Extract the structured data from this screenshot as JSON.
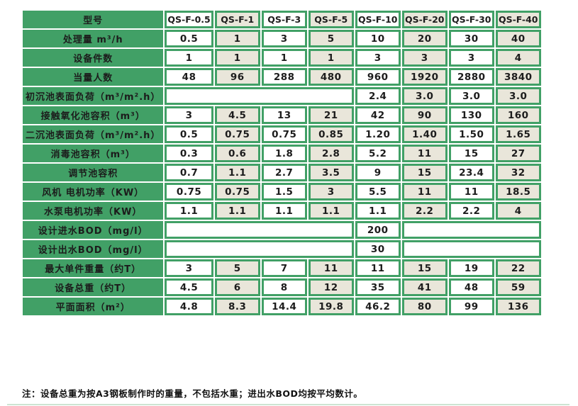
{
  "table": {
    "header": {
      "label": "型号",
      "models": [
        "QS-F-0.5",
        "QS-F-1",
        "QS-F-3",
        "QS-F-5",
        "QS-F-10",
        "QS-F-20",
        "QS-F-30",
        "QS-F-40"
      ]
    },
    "rows": [
      {
        "label": "处理量 m³/h",
        "cells": [
          "0.5",
          "1",
          "3",
          "5",
          "10",
          "20",
          "30",
          "40"
        ]
      },
      {
        "label": "设备件数",
        "cells": [
          "1",
          "1",
          "1",
          "1",
          "3",
          "3",
          "3",
          "4"
        ]
      },
      {
        "label": "当量人数",
        "cells": [
          "48",
          "96",
          "288",
          "480",
          "960",
          "1920",
          "2880",
          "3840"
        ]
      },
      {
        "label": "初沉池表面负荷（m³/m².h）",
        "cells": [
          {
            "text": "",
            "span": 4
          },
          "2.4",
          "3.0",
          "3.0",
          "3.0"
        ]
      },
      {
        "label": "接触氧化池容积（m³）",
        "cells": [
          "3",
          "4.5",
          "13",
          "21",
          "42",
          "90",
          "130",
          "160"
        ]
      },
      {
        "label": "二沉池表面负荷（m³/m².h）",
        "cells": [
          "0.5",
          "0.75",
          "0.75",
          "0.85",
          "1.20",
          "1.40",
          "1.50",
          "1.65"
        ]
      },
      {
        "label": "消毒池容积（m³）",
        "cells": [
          "0.3",
          "0.6",
          "1.8",
          "2.8",
          "5.2",
          "11",
          "15",
          "27"
        ]
      },
      {
        "label": "调节池容积",
        "cells": [
          "0.7",
          "1.1",
          "2.7",
          "3.5",
          "9",
          "15",
          "23.4",
          "32"
        ]
      },
      {
        "label": "风机 电机功率（KW）",
        "cells": [
          "0.75",
          "0.75",
          "1.5",
          "3",
          "5.5",
          "11",
          "11",
          "18.5"
        ]
      },
      {
        "label": "水泵电机功率（KW）",
        "cells": [
          "1.1",
          "1.1",
          "1.1",
          "1.1",
          "1.1",
          "2.2",
          "2.2",
          "4"
        ]
      },
      {
        "label": "设计进水BOD（mg/l）",
        "cells": [
          {
            "text": "",
            "span": 4
          },
          "200",
          {
            "text": "",
            "span": 3
          }
        ]
      },
      {
        "label": "设计出水BOD（mg/l）",
        "cells": [
          {
            "text": "",
            "span": 4
          },
          "30",
          {
            "text": "",
            "span": 3
          }
        ]
      },
      {
        "label": "最大单件重量（约T）",
        "cells": [
          "3",
          "5",
          "7",
          "11",
          "11",
          "15",
          "19",
          "22"
        ]
      },
      {
        "label": "设备总重（约T）",
        "cells": [
          "4.5",
          "6",
          "8",
          "12",
          "35",
          "41",
          "48",
          "59"
        ]
      },
      {
        "label": "平面面积（m²）",
        "cells": [
          "4.8",
          "8.3",
          "14.4",
          "19.8",
          "46.2",
          "80",
          "99",
          "136"
        ]
      }
    ]
  },
  "note": "注：设备总重为按A3钢板制作时的重量，不包括水重；进出水BOD均按平均数计。",
  "colors": {
    "green": "#41a066",
    "beige": "#e9e6da",
    "cell_white": "#ffffff",
    "text_dark": "#1c1c1c",
    "bottom_rule": "#cde4d2"
  }
}
